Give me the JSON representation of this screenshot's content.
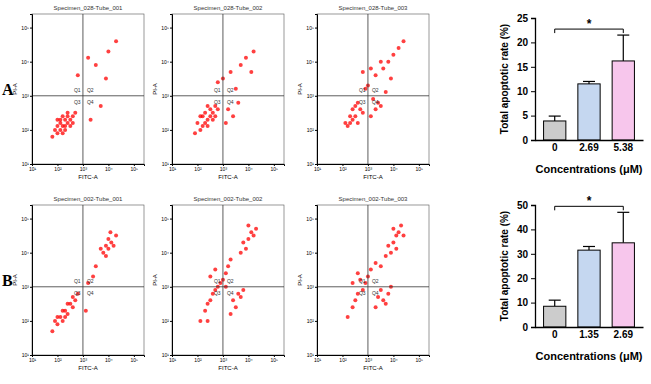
{
  "chart_data": [
    {
      "type": "scatter",
      "title": "Specimen_028-Tube_001",
      "panel_label": "A",
      "x_label": "FITC-A",
      "y_label": "PI-A",
      "log": true,
      "xlim": [
        10,
        250000
      ],
      "ylim": [
        10,
        250000
      ],
      "xticks": [
        {
          "value": 10,
          "label": "10¹"
        },
        {
          "value": 100,
          "label": "10²"
        },
        {
          "value": 1000,
          "label": "10³"
        },
        {
          "value": 10000,
          "label": "10⁴"
        },
        {
          "value": 100000,
          "label": "10⁵"
        }
      ],
      "yticks": [
        {
          "value": 10,
          "label": "10¹"
        },
        {
          "value": 100,
          "label": "10²"
        },
        {
          "value": 1000,
          "label": "10³"
        },
        {
          "value": 10000,
          "label": "10⁴"
        },
        {
          "value": 100000,
          "label": "10⁵"
        }
      ],
      "quadrant_x": 1000,
      "quadrant_y": 1000,
      "quadrants": [
        "Q1",
        "Q2",
        "Q3",
        "Q4"
      ],
      "color": "#ff0000",
      "x": [
        100,
        130,
        160,
        200,
        250,
        200,
        160,
        130,
        250,
        320,
        100,
        80,
        160,
        320,
        400,
        250,
        130,
        200,
        63,
        400,
        500,
        100,
        2000,
        5000,
        3200,
        10000,
        1600,
        630,
        20000,
        8000
      ],
      "values": [
        80,
        100,
        130,
        100,
        160,
        200,
        250,
        160,
        250,
        200,
        130,
        100,
        80,
        130,
        250,
        320,
        200,
        130,
        63,
        160,
        320,
        200,
        200,
        500,
        8000,
        20000,
        13000,
        4000,
        40000,
        3200
      ]
    },
    {
      "type": "scatter",
      "title": "Specimen_028-Tube_002",
      "x_label": "FITC-A",
      "y_label": "PI-A",
      "log": true,
      "xlim": [
        10,
        250000
      ],
      "ylim": [
        10,
        250000
      ],
      "xticks": [
        {
          "value": 10,
          "label": "10¹"
        },
        {
          "value": 100,
          "label": "10²"
        },
        {
          "value": 1000,
          "label": "10³"
        },
        {
          "value": 10000,
          "label": "10⁴"
        },
        {
          "value": 100000,
          "label": "10⁵"
        }
      ],
      "yticks": [
        {
          "value": 10,
          "label": "10¹"
        },
        {
          "value": 100,
          "label": "10²"
        },
        {
          "value": 1000,
          "label": "10³"
        },
        {
          "value": 10000,
          "label": "10⁴"
        },
        {
          "value": 100000,
          "label": "10⁵"
        }
      ],
      "quadrant_x": 1000,
      "quadrant_y": 1000,
      "quadrants": [
        "Q1",
        "Q2",
        "Q3",
        "Q4"
      ],
      "color": "#ff0000",
      "x": [
        130,
        200,
        250,
        320,
        400,
        160,
        250,
        320,
        500,
        200,
        100,
        400,
        630,
        160,
        250,
        80,
        500,
        130,
        1600,
        2500,
        4000,
        1300,
        3200,
        2000,
        5000,
        8000,
        16000,
        1000,
        630,
        13000
      ],
      "values": [
        100,
        160,
        200,
        250,
        320,
        130,
        130,
        400,
        250,
        320,
        160,
        200,
        400,
        250,
        500,
        80,
        500,
        250,
        400,
        250,
        630,
        160,
        1600,
        5000,
        8000,
        13000,
        20000,
        3200,
        2500,
        5000
      ]
    },
    {
      "type": "scatter",
      "title": "Specimen_028-Tube_003",
      "x_label": "FITC-A",
      "y_label": "PI-A",
      "log": true,
      "xlim": [
        10,
        250000
      ],
      "ylim": [
        10,
        250000
      ],
      "xticks": [
        {
          "value": 10,
          "label": "10¹"
        },
        {
          "value": 100,
          "label": "10²"
        },
        {
          "value": 1000,
          "label": "10³"
        },
        {
          "value": 10000,
          "label": "10⁴"
        },
        {
          "value": 100000,
          "label": "10⁵"
        }
      ],
      "yticks": [
        {
          "value": 10,
          "label": "10¹"
        },
        {
          "value": 100,
          "label": "10²"
        },
        {
          "value": 1000,
          "label": "10³"
        },
        {
          "value": 10000,
          "label": "10⁴"
        },
        {
          "value": 100000,
          "label": "10⁵"
        }
      ],
      "quadrant_x": 1000,
      "quadrant_y": 1000,
      "quadrants": [
        "Q1",
        "Q2",
        "Q3",
        "Q4"
      ],
      "color": "#ff0000",
      "x": [
        160,
        250,
        320,
        400,
        200,
        500,
        250,
        630,
        320,
        130,
        400,
        200,
        1300,
        2000,
        3200,
        1600,
        5000,
        2500,
        1000,
        2000,
        4000,
        6300,
        10000,
        16000,
        3200,
        800,
        25000,
        1300,
        8000,
        630
      ],
      "values": [
        130,
        200,
        250,
        160,
        250,
        400,
        400,
        320,
        500,
        160,
        630,
        160,
        250,
        400,
        500,
        800,
        1300,
        630,
        2000,
        4000,
        6300,
        10000,
        16000,
        25000,
        10000,
        1600,
        40000,
        6300,
        3200,
        5000
      ]
    },
    {
      "type": "scatter",
      "title": "Specimen_002-Tube_001",
      "panel_label": "B",
      "x_label": "FITC-A",
      "y_label": "PI-A",
      "log": true,
      "xlim": [
        10,
        250000
      ],
      "ylim": [
        10,
        250000
      ],
      "xticks": [
        {
          "value": 10,
          "label": "10¹"
        },
        {
          "value": 100,
          "label": "10²"
        },
        {
          "value": 1000,
          "label": "10³"
        },
        {
          "value": 10000,
          "label": "10⁴"
        },
        {
          "value": 100000,
          "label": "10⁵"
        }
      ],
      "yticks": [
        {
          "value": 10,
          "label": "10¹"
        },
        {
          "value": 100,
          "label": "10²"
        },
        {
          "value": 1000,
          "label": "10³"
        },
        {
          "value": 10000,
          "label": "10⁴"
        },
        {
          "value": 100000,
          "label": "10⁵"
        }
      ],
      "quadrant_x": 1000,
      "quadrant_y": 1000,
      "quadrants": [
        "Q1",
        "Q2",
        "Q3",
        "Q4"
      ],
      "color": "#ff0000",
      "x": [
        63,
        100,
        130,
        160,
        200,
        250,
        320,
        400,
        100,
        200,
        500,
        630,
        160,
        80,
        250,
        400,
        6300,
        8000,
        10000,
        13000,
        5000,
        10000,
        16000,
        8000,
        20000,
        12000,
        1600,
        2500,
        3200,
        1300
      ],
      "values": [
        50,
        80,
        130,
        100,
        200,
        160,
        320,
        250,
        130,
        130,
        400,
        630,
        200,
        100,
        320,
        500,
        10000,
        16000,
        13000,
        20000,
        13000,
        25000,
        16000,
        8000,
        32000,
        40000,
        1300,
        2000,
        4000,
        200
      ]
    },
    {
      "type": "scatter",
      "title": "Specimen_002-Tube_002",
      "x_label": "FITC-A",
      "y_label": "PI-A",
      "log": true,
      "xlim": [
        10,
        250000
      ],
      "ylim": [
        10,
        250000
      ],
      "xticks": [
        {
          "value": 10,
          "label": "10¹"
        },
        {
          "value": 100,
          "label": "10²"
        },
        {
          "value": 1000,
          "label": "10³"
        },
        {
          "value": 10000,
          "label": "10⁴"
        },
        {
          "value": 100000,
          "label": "10⁵"
        }
      ],
      "yticks": [
        {
          "value": 10,
          "label": "10¹"
        },
        {
          "value": 100,
          "label": "10²"
        },
        {
          "value": 1000,
          "label": "10³"
        },
        {
          "value": 10000,
          "label": "10⁴"
        },
        {
          "value": 100000,
          "label": "10⁵"
        }
      ],
      "quadrant_x": 1000,
      "quadrant_y": 1000,
      "quadrants": [
        "Q1",
        "Q2",
        "Q3",
        "Q4"
      ],
      "color": "#ff0000",
      "x": [
        130,
        200,
        250,
        320,
        400,
        500,
        630,
        800,
        1000,
        1300,
        1600,
        2000,
        320,
        500,
        2500,
        4000,
        3200,
        5000,
        6300,
        2000,
        6300,
        10000,
        13000,
        8000,
        16000,
        20000,
        5000,
        10000,
        250,
        1300
      ],
      "values": [
        100,
        200,
        320,
        400,
        630,
        800,
        1000,
        1300,
        1600,
        2500,
        4000,
        6300,
        2000,
        3200,
        400,
        630,
        250,
        500,
        800,
        160,
        20000,
        25000,
        40000,
        13000,
        32000,
        50000,
        10000,
        63000,
        100,
        1000
      ]
    },
    {
      "type": "scatter",
      "title": "Specimen_002-Tube_003",
      "x_label": "FITC-A",
      "y_label": "PI-A",
      "log": true,
      "xlim": [
        10,
        250000
      ],
      "ylim": [
        10,
        250000
      ],
      "xticks": [
        {
          "value": 10,
          "label": "10¹"
        },
        {
          "value": 100,
          "label": "10²"
        },
        {
          "value": 1000,
          "label": "10³"
        },
        {
          "value": 10000,
          "label": "10⁴"
        },
        {
          "value": 100000,
          "label": "10⁵"
        }
      ],
      "yticks": [
        {
          "value": 10,
          "label": "10¹"
        },
        {
          "value": 100,
          "label": "10²"
        },
        {
          "value": 1000,
          "label": "10³"
        },
        {
          "value": 10000,
          "label": "10⁴"
        },
        {
          "value": 100000,
          "label": "10⁵"
        }
      ],
      "quadrant_x": 1000,
      "quadrant_y": 1000,
      "quadrants": [
        "Q1",
        "Q2",
        "Q3",
        "Q4"
      ],
      "color": "#ff0000",
      "x": [
        160,
        250,
        320,
        400,
        630,
        800,
        1000,
        1300,
        2000,
        500,
        400,
        250,
        2500,
        4000,
        3200,
        6300,
        5000,
        2000,
        8000,
        6300,
        10000,
        13000,
        8000,
        16000,
        20000,
        5000,
        10000,
        25000,
        3200,
        13000
      ],
      "values": [
        130,
        250,
        400,
        630,
        800,
        1300,
        2000,
        3200,
        5000,
        1600,
        2500,
        1300,
        500,
        400,
        800,
        630,
        320,
        250,
        1000,
        16000,
        20000,
        32000,
        10000,
        40000,
        63000,
        8000,
        50000,
        32000,
        4000,
        13000
      ]
    },
    {
      "type": "bar",
      "x_label": "Concentrations (μM)",
      "y_label": "Total apoptotic rate (%)",
      "categories": [
        "0",
        "2.69",
        "5.38"
      ],
      "values": [
        3.9,
        11.5,
        16.2
      ],
      "errors": [
        1.0,
        0.5,
        5.3
      ],
      "colors": [
        "#cccccc",
        "#c5d7f0",
        "#f7c6ec"
      ],
      "ylim": [
        0,
        25
      ],
      "yticks": [
        0,
        5,
        10,
        15,
        20,
        25
      ],
      "annotations": [
        {
          "text": "*",
          "from": 0,
          "to": 2
        }
      ]
    },
    {
      "type": "bar",
      "x_label": "Concentrations (μM)",
      "y_label": "Total apoptotic rate (%)",
      "categories": [
        "0",
        "1.35",
        "2.69"
      ],
      "values": [
        8.5,
        31.5,
        34.5
      ],
      "errors": [
        2.5,
        1.5,
        12.5
      ],
      "colors": [
        "#cccccc",
        "#c5d7f0",
        "#f7c6ec"
      ],
      "ylim": [
        0,
        50
      ],
      "yticks": [
        0,
        10,
        20,
        30,
        40,
        50
      ],
      "annotations": [
        {
          "text": "*",
          "from": 0,
          "to": 2
        }
      ]
    }
  ]
}
